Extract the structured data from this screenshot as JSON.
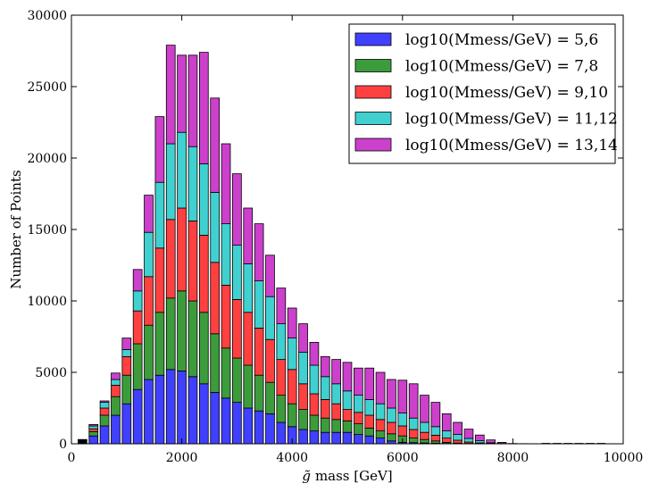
{
  "chart_data": {
    "type": "bar",
    "stacked": true,
    "xlabel_glyph": "g̃",
    "xlabel": "mass [GeV]",
    "ylabel": "Number of Points",
    "xlim": [
      0,
      10000
    ],
    "ylim": [
      0,
      30000
    ],
    "x_ticks": [
      "0",
      "2000",
      "4000",
      "6000",
      "8000",
      "10000"
    ],
    "y_ticks": [
      "0",
      "5000",
      "10000",
      "15000",
      "20000",
      "25000",
      "30000"
    ],
    "bin_width": 200,
    "legend_position": "top-right",
    "x": [
      200,
      400,
      600,
      800,
      1000,
      1200,
      1400,
      1600,
      1800,
      2000,
      2200,
      2400,
      2600,
      2800,
      3000,
      3200,
      3400,
      3600,
      3800,
      4000,
      4200,
      4400,
      4600,
      4800,
      5000,
      5200,
      5400,
      5600,
      5800,
      6000,
      6200,
      6400,
      6600,
      6800,
      7000,
      7200,
      7400,
      7600,
      7800,
      8000,
      8200,
      8400,
      8600,
      8800,
      9000,
      9200,
      9400,
      9600
    ],
    "series": [
      {
        "name": "log10(Mmess/GeV) = 5,6",
        "color": "#4040ff",
        "values": [
          300,
          550,
          1250,
          2000,
          2800,
          3800,
          4500,
          4800,
          5200,
          5100,
          4700,
          4200,
          3600,
          3200,
          2900,
          2500,
          2300,
          2100,
          1500,
          1200,
          1000,
          900,
          800,
          800,
          800,
          650,
          550,
          400,
          200,
          100,
          80,
          60,
          40,
          20,
          10,
          5,
          3,
          0,
          0,
          0,
          0,
          0,
          0,
          0,
          0,
          0,
          0,
          0
        ]
      },
      {
        "name": "log10(Mmess/GeV) = 7,8",
        "color": "#3c9c3c",
        "values": [
          0,
          300,
          750,
          1300,
          2000,
          3200,
          3800,
          4400,
          5000,
          5600,
          5300,
          5000,
          4100,
          3500,
          3100,
          3000,
          2500,
          2200,
          1900,
          1600,
          1400,
          1100,
          1000,
          900,
          800,
          750,
          550,
          500,
          500,
          450,
          320,
          240,
          160,
          80,
          40,
          20,
          10,
          0,
          0,
          0,
          0,
          0,
          0,
          0,
          0,
          0,
          0,
          0
        ]
      },
      {
        "name": "log10(Mmess/GeV) = 9,10",
        "color": "#ff4040",
        "values": [
          0,
          200,
          500,
          800,
          1300,
          2300,
          3400,
          4500,
          5500,
          5800,
          5600,
          5400,
          5000,
          4400,
          4100,
          3700,
          3300,
          3000,
          2500,
          2400,
          1800,
          1500,
          1300,
          1100,
          800,
          800,
          900,
          800,
          800,
          700,
          600,
          500,
          400,
          300,
          200,
          100,
          50,
          20,
          0,
          0,
          0,
          0,
          0,
          0,
          0,
          0,
          0,
          0
        ]
      },
      {
        "name": "log10(Mmess/GeV) = 11,12",
        "color": "#40d0d0",
        "values": [
          0,
          200,
          400,
          400,
          500,
          1400,
          3100,
          4600,
          5300,
          5300,
          5200,
          5000,
          4900,
          4300,
          3800,
          3400,
          3300,
          3000,
          2500,
          2200,
          2200,
          2000,
          1600,
          1400,
          1300,
          1200,
          1100,
          1100,
          1000,
          900,
          800,
          700,
          600,
          500,
          400,
          250,
          150,
          50,
          20,
          0,
          0,
          0,
          0,
          0,
          0,
          0,
          0,
          0
        ]
      },
      {
        "name": "log10(Mmess/GeV) = 13,14",
        "color": "#cc40cc",
        "values": [
          0,
          100,
          100,
          450,
          800,
          1500,
          2600,
          4600,
          6900,
          5400,
          6400,
          7800,
          6600,
          5600,
          5000,
          3900,
          4000,
          2900,
          2500,
          2100,
          2000,
          1600,
          1400,
          1700,
          2000,
          1900,
          2200,
          2200,
          2000,
          2300,
          2400,
          1900,
          1700,
          1200,
          850,
          650,
          400,
          200,
          80,
          20,
          10,
          5,
          0,
          0,
          0,
          0,
          0,
          0
        ]
      }
    ],
    "extra_bins": [
      {
        "x": 200,
        "value": 300,
        "color": "#000000"
      }
    ]
  }
}
